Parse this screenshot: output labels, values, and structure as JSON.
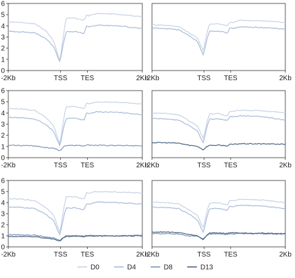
{
  "legend": {
    "placement": "bottom-center",
    "entries": [
      {
        "label": "D0",
        "color": "#c8d3e6"
      },
      {
        "label": "D4",
        "color": "#a9bcd9"
      },
      {
        "label": "D8",
        "color": "#7f96b7"
      },
      {
        "label": "D13",
        "color": "#4f6585"
      }
    ]
  },
  "chart_data": [
    {
      "type": "line",
      "panel": "row1-left",
      "xticks": [
        "-2Kb",
        "TSS",
        "TES",
        "2Kb"
      ],
      "yticks": [
        "0",
        "1",
        "2",
        "3",
        "4",
        "5",
        "6"
      ],
      "ylim": [
        0,
        6
      ],
      "grid": false,
      "profiles": [
        {
          "color": "#c8d3e6",
          "base": 4.35,
          "dip": 0.85,
          "body": 4.65,
          "tes": 5.0,
          "post": 5.1,
          "end": 4.8
        },
        {
          "color": "#a9bcd9",
          "base": 3.5,
          "dip": 0.75,
          "body": 3.45,
          "tes": 4.0,
          "post": 4.05,
          "end": 3.75
        }
      ]
    },
    {
      "type": "line",
      "panel": "row1-right",
      "xticks": [
        "-2Kb",
        "TSS",
        "TES",
        "2Kb"
      ],
      "yticks": [],
      "ylim": [
        0,
        6
      ],
      "grid": false,
      "profiles": [
        {
          "color": "#c8d3e6",
          "base": 4.1,
          "dip": 1.75,
          "body": 4.15,
          "tes": 4.35,
          "post": 4.5,
          "end": 4.3
        },
        {
          "color": "#a9bcd9",
          "base": 3.8,
          "dip": 1.4,
          "body": 3.5,
          "tes": 3.85,
          "post": 3.9,
          "end": 3.7
        }
      ]
    },
    {
      "type": "line",
      "panel": "row2-left",
      "xticks": [
        "-2Kb",
        "TSS",
        "TES",
        "2Kb"
      ],
      "yticks": [
        "0",
        "1",
        "2",
        "3",
        "4",
        "5",
        "6"
      ],
      "ylim": [
        0,
        6
      ],
      "grid": false,
      "profiles": [
        {
          "color": "#c8d3e6",
          "base": 4.4,
          "dip": 1.2,
          "body": 4.55,
          "tes": 4.9,
          "post": 5.0,
          "end": 4.8
        },
        {
          "color": "#a9bcd9",
          "base": 3.6,
          "dip": 1.05,
          "body": 3.5,
          "tes": 4.0,
          "post": 4.1,
          "end": 3.85
        },
        {
          "color": "#7f96b7",
          "base": 1.1,
          "dip": 0.6,
          "body": 1.1,
          "tes": 1.15,
          "post": 1.1,
          "end": 1.05
        }
      ]
    },
    {
      "type": "line",
      "panel": "row2-right",
      "xticks": [
        "-2Kb",
        "TSS",
        "TES",
        "2Kb"
      ],
      "yticks": [],
      "ylim": [
        0,
        6
      ],
      "grid": false,
      "profiles": [
        {
          "color": "#c8d3e6",
          "base": 4.0,
          "dip": 1.7,
          "body": 3.9,
          "tes": 4.2,
          "post": 4.25,
          "end": 4.0
        },
        {
          "color": "#a9bcd9",
          "base": 3.5,
          "dip": 1.3,
          "body": 3.45,
          "tes": 3.7,
          "post": 3.75,
          "end": 3.35
        },
        {
          "color": "#4f6585",
          "base": 1.35,
          "dip": 0.7,
          "body": 1.1,
          "tes": 1.2,
          "post": 1.25,
          "end": 1.2
        }
      ]
    },
    {
      "type": "line",
      "panel": "row3-left",
      "xticks": [
        "-2Kb",
        "TSS",
        "TES",
        "2Kb"
      ],
      "yticks": [
        "0",
        "1",
        "2",
        "3",
        "4",
        "5",
        "6"
      ],
      "ylim": [
        0,
        6
      ],
      "grid": false,
      "profiles": [
        {
          "color": "#c8d3e6",
          "base": 4.35,
          "dip": 1.3,
          "body": 4.5,
          "tes": 4.95,
          "post": 5.0,
          "end": 4.85
        },
        {
          "color": "#a9bcd9",
          "base": 3.6,
          "dip": 1.05,
          "body": 3.5,
          "tes": 3.95,
          "post": 4.05,
          "end": 3.85
        },
        {
          "color": "#7f96b7",
          "base": 1.1,
          "dip": 0.55,
          "body": 1.0,
          "tes": 1.05,
          "post": 1.0,
          "end": 1.05
        },
        {
          "color": "#4f6585",
          "base": 0.95,
          "dip": 0.5,
          "body": 0.95,
          "tes": 1.0,
          "post": 1.0,
          "end": 1.0
        }
      ]
    },
    {
      "type": "line",
      "panel": "row3-right",
      "xticks": [
        "-2Kb",
        "TSS",
        "TES",
        "2Kb"
      ],
      "yticks": [],
      "ylim": [
        0,
        6
      ],
      "grid": false,
      "profiles": [
        {
          "color": "#c8d3e6",
          "base": 4.05,
          "dip": 1.7,
          "body": 3.95,
          "tes": 4.25,
          "post": 4.3,
          "end": 4.0
        },
        {
          "color": "#a9bcd9",
          "base": 3.6,
          "dip": 1.3,
          "body": 3.45,
          "tes": 3.7,
          "post": 3.75,
          "end": 3.45
        },
        {
          "color": "#7f96b7",
          "base": 1.2,
          "dip": 0.7,
          "body": 1.15,
          "tes": 1.2,
          "post": 1.2,
          "end": 1.15
        },
        {
          "color": "#4f6585",
          "base": 1.35,
          "dip": 0.65,
          "body": 1.25,
          "tes": 1.3,
          "post": 1.25,
          "end": 1.2
        }
      ]
    }
  ]
}
